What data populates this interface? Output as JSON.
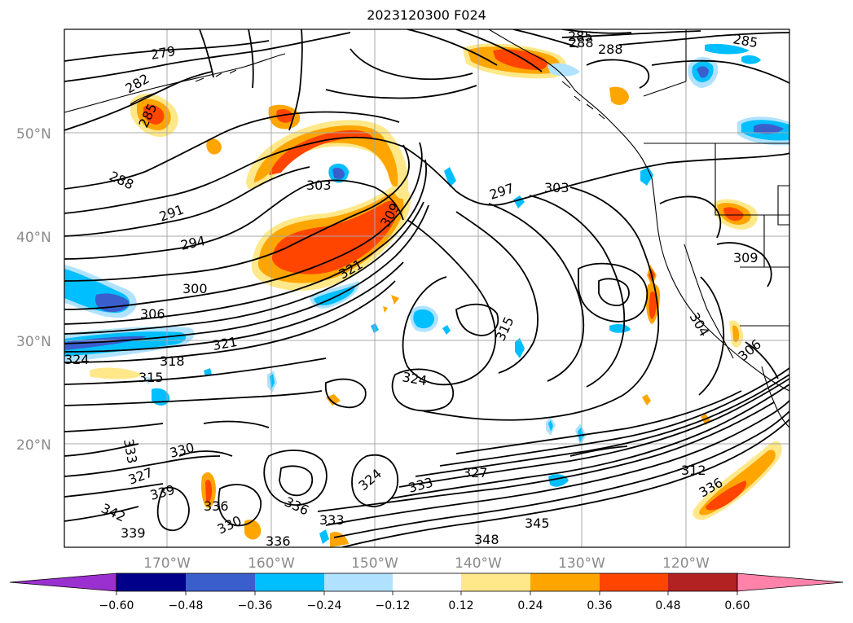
{
  "title": "2023120300 F024",
  "latitude_labels": [
    "50°N",
    "40°N",
    "30°N",
    "20°N"
  ],
  "longitude_labels": [
    "170°W",
    "160°W",
    "150°W",
    "140°W",
    "130°W",
    "120°W"
  ],
  "colorbar": {
    "ticks": [
      "−0.60",
      "−0.48",
      "−0.36",
      "−0.24",
      "−0.12",
      "0.12",
      "0.24",
      "0.36",
      "0.48",
      "0.60"
    ],
    "colors": [
      "#9b30d0",
      "#00008b",
      "#3a5fcd",
      "#00bfff",
      "#b0e2ff",
      "#ffffff",
      "#ffe88a",
      "#ffa500",
      "#ff4500",
      "#b22222",
      "#ff82ab"
    ]
  },
  "contour_labels": [
    "279",
    "282",
    "285",
    "285",
    "288",
    "288",
    "285",
    "288",
    "291",
    "294",
    "297",
    "300",
    "303",
    "303",
    "306",
    "309",
    "309",
    "312",
    "315",
    "315",
    "318",
    "321",
    "321",
    "324",
    "324",
    "324",
    "327",
    "327",
    "330",
    "330",
    "333",
    "333",
    "333",
    "336",
    "336",
    "339",
    "339",
    "342",
    "345",
    "348",
    "304",
    "306",
    "336",
    "336"
  ]
}
